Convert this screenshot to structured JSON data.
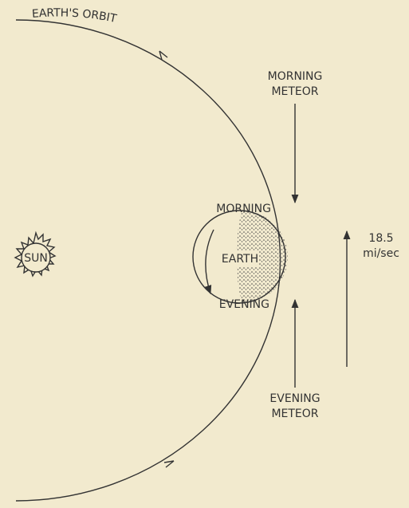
{
  "labels": {
    "orbit": "EARTH'S ORBIT",
    "sun": "SUN",
    "earth": "EARTH",
    "morning": "MORNING",
    "evening": "EVENING",
    "morning_meteor": [
      "MORNING",
      "METEOR"
    ],
    "evening_meteor": [
      "EVENING",
      "METEOR"
    ],
    "speed": [
      "18.5",
      "mi/sec"
    ]
  }
}
